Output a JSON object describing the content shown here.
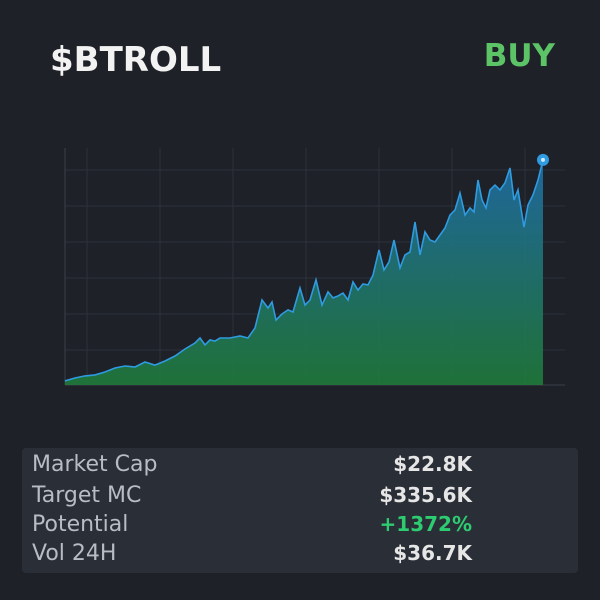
{
  "header": {
    "ticker": "$BTROLL",
    "action": "BUY"
  },
  "chart_data": {
    "type": "area",
    "color": "#2f9be0",
    "xlim": [
      0,
      480
    ],
    "ylim": [
      0,
      100
    ],
    "x": [
      0,
      10,
      20,
      30,
      40,
      50,
      60,
      70,
      80,
      90,
      100,
      110,
      120,
      130,
      135,
      140,
      145,
      150,
      155,
      165,
      175,
      183,
      190,
      197,
      203,
      207,
      211,
      217,
      223,
      228,
      235,
      240,
      245,
      251,
      257,
      263,
      268,
      273,
      278,
      283,
      288,
      293,
      298,
      303,
      308,
      314,
      319,
      324,
      329,
      335,
      340,
      345,
      350,
      355,
      360,
      365,
      370,
      375,
      380,
      385,
      390,
      395,
      400,
      405,
      409,
      413,
      417,
      421,
      425,
      430,
      435,
      440,
      445,
      449,
      453,
      459,
      463,
      468,
      473,
      478
    ],
    "values": [
      1.7,
      2.9,
      3.8,
      4.2,
      5.4,
      7.1,
      7.9,
      7.5,
      9.6,
      8.3,
      10,
      12.1,
      15,
      17.5,
      19.6,
      16.7,
      18.8,
      18.3,
      19.6,
      19.6,
      20.4,
      19.6,
      23.8,
      35.4,
      32.1,
      34.6,
      27.1,
      29.6,
      31.3,
      30.4,
      40.4,
      33.3,
      35.4,
      43.8,
      33.3,
      38.8,
      36.3,
      37.1,
      38.3,
      35.4,
      42.9,
      39.6,
      42.1,
      41.7,
      45.8,
      56.3,
      47.9,
      51.3,
      60.4,
      48.8,
      54.2,
      55.4,
      67.9,
      54.2,
      63.8,
      60.4,
      59.6,
      62.5,
      65.4,
      70.8,
      72.9,
      80,
      70.8,
      73.8,
      72.1,
      85.4,
      77.1,
      73.8,
      81.3,
      83.3,
      81.3,
      84.2,
      90.4,
      77.1,
      81.3,
      65.8,
      75,
      79.2,
      85.4,
      93.8
    ]
  },
  "stats": [
    {
      "label": "Market Cap",
      "value": "$22.8K"
    },
    {
      "label": "Target MC",
      "value": "$335.6K"
    },
    {
      "label": "Potential",
      "value": "+1372%"
    },
    {
      "label": "Vol 24H",
      "value": "$36.7K"
    }
  ]
}
